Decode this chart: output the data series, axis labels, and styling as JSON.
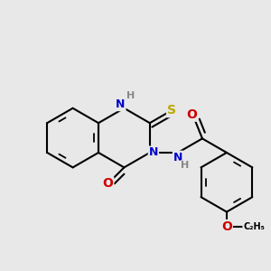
{
  "bg_color": "#e8e8e8",
  "bond_color": "#000000",
  "bond_width": 1.5,
  "atom_colors": {
    "N": "#0000cc",
    "O": "#cc0000",
    "S": "#bbaa00",
    "H": "#888888"
  },
  "font_size": 9
}
